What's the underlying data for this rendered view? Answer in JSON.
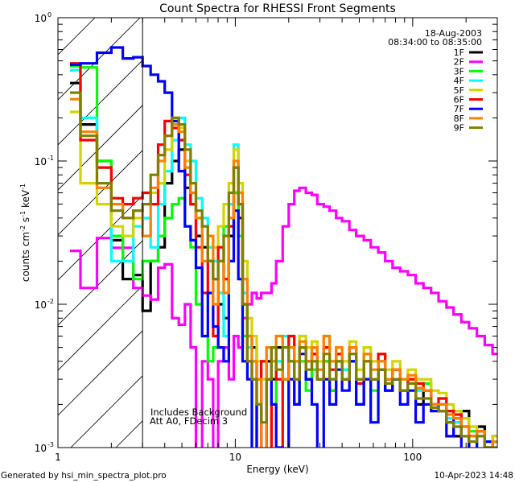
{
  "chart_data": {
    "type": "line",
    "title": "Count Spectra for RHESSI Front Segments",
    "xlabel": "Energy (keV)",
    "ylabel_parts": [
      "counts cm",
      "-2",
      " s",
      "-1",
      " keV",
      "-1"
    ],
    "xscale": "log",
    "yscale": "log",
    "xlim": [
      1,
      300
    ],
    "ylim": [
      0.001,
      1
    ],
    "x_tick_labels": [
      {
        "value": 1,
        "label": "1"
      },
      {
        "value": 10,
        "label": "10"
      },
      {
        "value": 100,
        "label": "100"
      }
    ],
    "y_tick_labels": [
      {
        "value": 1,
        "base": "10",
        "exp": "0"
      },
      {
        "value": 0.1,
        "base": "10",
        "exp": "-1"
      },
      {
        "value": 0.01,
        "base": "10",
        "exp": "-2"
      },
      {
        "value": 0.001,
        "base": "10",
        "exp": "-3"
      }
    ],
    "grid": false,
    "hatched_region_keV": [
      1,
      3
    ],
    "energy_edges": [
      1.17,
      1.34,
      1.66,
      2.0,
      2.32,
      2.66,
      3.0,
      3.33,
      3.67,
      4.0,
      4.4,
      4.8,
      5.2,
      5.6,
      6.0,
      6.5,
      7.0,
      7.5,
      8.0,
      8.6,
      9.2,
      9.8,
      10.4,
      11.0,
      11.7,
      12.4,
      13.2,
      14,
      15,
      16,
      17,
      18.5,
      20,
      21.5,
      23,
      25,
      27,
      29,
      31.5,
      34,
      37,
      40,
      44,
      48,
      53,
      58,
      64,
      70,
      77,
      85,
      94,
      104,
      115,
      127,
      140,
      155,
      170,
      188,
      208,
      230,
      255,
      282,
      300
    ],
    "series": [
      {
        "name": "1F",
        "color": "#000000",
        "values": [
          0.35,
          0.18,
          0.1,
          0.028,
          0.015,
          0.016,
          0.009,
          0.02,
          0.025,
          0.07,
          0.1,
          0.12,
          0.065,
          0.05,
          0.03,
          0.025,
          0.02,
          0.015,
          0.01,
          0.008,
          0.03,
          0.06,
          0.04,
          0.01,
          0.006,
          0.005,
          0.003,
          0.0005,
          0.004,
          0.003,
          0.005,
          0.003,
          0.004,
          0.002,
          0.005,
          0.003,
          0.0045,
          0.003,
          0.004,
          0.0025,
          0.0045,
          0.003,
          0.004,
          0.002,
          0.0045,
          0.003,
          0.0035,
          0.0025,
          0.003,
          0.0025,
          0.0028,
          0.002,
          0.0025,
          0.002,
          0.0018,
          0.0015,
          0.0012,
          0.0018,
          0.0009,
          0.0014,
          0.001,
          0.0012
        ]
      },
      {
        "name": "2F",
        "color": "#ff00ff",
        "values": [
          0.0236,
          0.013,
          0.029,
          0.0248,
          0.0248,
          0.013,
          0.0115,
          0.0108,
          0.018,
          0.019,
          0.008,
          0.0072,
          0.01,
          0.005,
          0.0005,
          0.004,
          0.003,
          0.0005,
          0.004,
          0.005,
          0.003,
          0.006,
          0.005,
          0.008,
          0.01,
          0.012,
          0.011,
          0.012,
          0.012,
          0.014,
          0.02,
          0.035,
          0.05,
          0.062,
          0.065,
          0.06,
          0.058,
          0.05,
          0.048,
          0.045,
          0.04,
          0.038,
          0.033,
          0.03,
          0.028,
          0.025,
          0.023,
          0.02,
          0.018,
          0.017,
          0.016,
          0.014,
          0.013,
          0.012,
          0.0105,
          0.0095,
          0.0085,
          0.0075,
          0.0068,
          0.006,
          0.0052,
          0.0045
        ]
      },
      {
        "name": "3F",
        "color": "#00ff00",
        "values": [
          0.46,
          0.45,
          0.1,
          0.03,
          0.02,
          0.015,
          0.02,
          0.02,
          0.03,
          0.04,
          0.05,
          0.055,
          0.035,
          0.025,
          0.01,
          0.006,
          0.004,
          0.005,
          0.012,
          0.035,
          0.05,
          0.06,
          0.03,
          0.006,
          0.004,
          0.0005,
          0.003,
          0.004,
          0.003,
          0.0005,
          0.004,
          0.003,
          0.004,
          0.002,
          0.004,
          0.0025,
          0.0035,
          0.003,
          0.004,
          0.0025,
          0.004,
          0.0035,
          0.0045,
          0.003,
          0.004,
          0.0025,
          0.004,
          0.003,
          0.0035,
          0.0025,
          0.003,
          0.0025,
          0.0028,
          0.002,
          0.0022,
          0.0018,
          0.0015,
          0.0016,
          0.0013,
          0.0012,
          0.0011,
          0.001
        ]
      },
      {
        "name": "4F",
        "color": "#00ffff",
        "values": [
          0.43,
          0.2,
          0.09,
          0.02,
          0.02,
          0.035,
          0.04,
          0.025,
          0.05,
          0.085,
          0.14,
          0.2,
          0.13,
          0.1,
          0.055,
          0.04,
          0.025,
          0.02,
          0.012,
          0.006,
          0.05,
          0.13,
          0.06,
          0.012,
          0.005,
          0.004,
          0.002,
          0.0005,
          0.003,
          0.005,
          0.004,
          0.006,
          0.005,
          0.004,
          0.006,
          0.004,
          0.005,
          0.0035,
          0.005,
          0.003,
          0.0045,
          0.0035,
          0.005,
          0.003,
          0.0045,
          0.003,
          0.004,
          0.003,
          0.0035,
          0.003,
          0.003,
          0.0025,
          0.0025,
          0.002,
          0.002,
          0.0016,
          0.0015,
          0.0014,
          0.0012,
          0.0012,
          0.001,
          0.0011
        ]
      },
      {
        "name": "5F",
        "color": "#d4d400",
        "values": [
          0.22,
          0.07,
          0.05,
          0.035,
          0.03,
          0.04,
          0.05,
          0.06,
          0.07,
          0.12,
          0.2,
          0.17,
          0.1,
          0.06,
          0.04,
          0.035,
          0.03,
          0.025,
          0.035,
          0.05,
          0.07,
          0.12,
          0.07,
          0.02,
          0.008,
          0.006,
          0.004,
          0.003,
          0.005,
          0.004,
          0.006,
          0.005,
          0.006,
          0.004,
          0.006,
          0.005,
          0.0055,
          0.004,
          0.006,
          0.004,
          0.005,
          0.004,
          0.0055,
          0.0035,
          0.005,
          0.004,
          0.0045,
          0.0035,
          0.004,
          0.003,
          0.0035,
          0.003,
          0.003,
          0.0025,
          0.0024,
          0.002,
          0.0018,
          0.0016,
          0.0014,
          0.0013,
          0.0011,
          0.0012
        ]
      },
      {
        "name": "6F",
        "color": "#ff0000",
        "values": [
          0.48,
          0.14,
          0.09,
          0.055,
          0.05,
          0.055,
          0.06,
          0.05,
          0.13,
          0.19,
          0.17,
          0.14,
          0.08,
          0.05,
          0.025,
          0.012,
          0.02,
          0.006,
          0.025,
          0.015,
          0.035,
          0.09,
          0.05,
          0.01,
          0.004,
          0.003,
          0.0005,
          0.004,
          0.0005,
          0.005,
          0.003,
          0.0005,
          0.006,
          0.003,
          0.005,
          0.004,
          0.0045,
          0.003,
          0.005,
          0.0035,
          0.0045,
          0.003,
          0.005,
          0.0028,
          0.004,
          0.003,
          0.0045,
          0.003,
          0.0035,
          0.0025,
          0.003,
          0.0028,
          0.0025,
          0.002,
          0.0022,
          0.0018,
          0.0017,
          0.0014,
          0.0012,
          0.0013,
          0.001,
          0.0011
        ]
      },
      {
        "name": "7F",
        "color": "#0000ff",
        "values": [
          0.47,
          0.48,
          0.57,
          0.62,
          0.52,
          0.53,
          0.46,
          0.4,
          0.36,
          0.3,
          0.19,
          0.085,
          0.035,
          0.028,
          0.018,
          0.006,
          0.012,
          0.007,
          0.005,
          0.004,
          0.02,
          0.045,
          0.015,
          0.004,
          0.003,
          0.0006,
          0.002,
          0.0005,
          0.003,
          0.002,
          0.001,
          0.0006,
          0.003,
          0.002,
          0.0045,
          0.003,
          0.002,
          0.0008,
          0.003,
          0.002,
          0.0035,
          0.0025,
          0.004,
          0.002,
          0.003,
          0.0015,
          0.0035,
          0.0025,
          0.003,
          0.002,
          0.0025,
          0.0015,
          0.002,
          0.0018,
          0.002,
          0.0012,
          0.0016,
          0.0008,
          0.0012,
          0.0009,
          0.0011,
          0.0008
        ]
      },
      {
        "name": "8F",
        "color": "#ff8000",
        "values": [
          0.27,
          0.16,
          0.065,
          0.05,
          0.04,
          0.045,
          0.03,
          0.065,
          0.1,
          0.15,
          0.18,
          0.16,
          0.09,
          0.06,
          0.04,
          0.02,
          0.03,
          0.01,
          0.02,
          0.012,
          0.04,
          0.1,
          0.06,
          0.015,
          0.006,
          0.004,
          0.003,
          0.0005,
          0.005,
          0.004,
          0.006,
          0.003,
          0.005,
          0.004,
          0.0055,
          0.004,
          0.005,
          0.0035,
          0.006,
          0.004,
          0.005,
          0.003,
          0.005,
          0.003,
          0.0045,
          0.0035,
          0.004,
          0.003,
          0.0035,
          0.003,
          0.0032,
          0.0026,
          0.0025,
          0.002,
          0.002,
          0.0017,
          0.0016,
          0.0014,
          0.0012,
          0.0013,
          0.001,
          0.0011
        ]
      },
      {
        "name": "9F",
        "color": "#808000",
        "values": [
          0.3,
          0.15,
          0.07,
          0.045,
          0.04,
          0.045,
          0.05,
          0.08,
          0.11,
          0.15,
          0.2,
          0.18,
          0.12,
          0.07,
          0.045,
          0.035,
          0.02,
          0.015,
          0.02,
          0.03,
          0.06,
          0.09,
          0.05,
          0.01,
          0.004,
          0.003,
          0.002,
          0.0015,
          0.003,
          0.005,
          0.0035,
          0.005,
          0.004,
          0.003,
          0.005,
          0.0035,
          0.004,
          0.003,
          0.0045,
          0.003,
          0.004,
          0.003,
          0.0045,
          0.003,
          0.004,
          0.003,
          0.0035,
          0.0028,
          0.003,
          0.0025,
          0.0028,
          0.0022,
          0.0022,
          0.0019,
          0.0018,
          0.0015,
          0.0014,
          0.0012,
          0.0011,
          0.0012,
          0.001,
          0.001
        ]
      }
    ],
    "legend": {
      "placement": "top-right",
      "date": "18-Aug-2003",
      "time_range": "08:34:00 to 08:35:00"
    },
    "annotations": [
      "Includes Background",
      "Att A0, FDecim 3"
    ]
  },
  "footer": {
    "left": "Generated by hsi_min_spectra_plot.pro",
    "right": "10-Apr-2023 14:48"
  }
}
